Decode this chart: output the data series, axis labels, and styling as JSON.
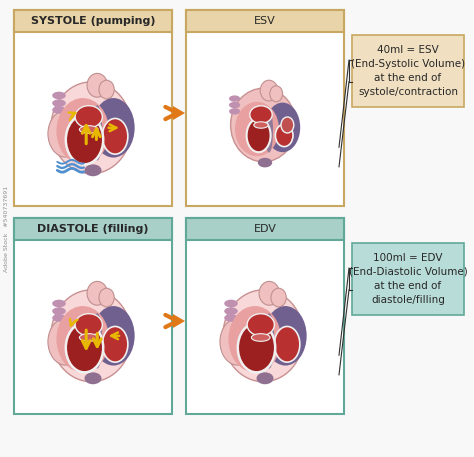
{
  "bg_color": "#f8f8f8",
  "top_header_color": "#e8d4a8",
  "bottom_header_color": "#a8cfc8",
  "top_border_color": "#c8a860",
  "bottom_border_color": "#60a898",
  "esv_box_color": "#f0dfc0",
  "edv_box_color": "#b8dcd8",
  "esv_box_border": "#c8a860",
  "edv_box_border": "#60a898",
  "arrow_color": "#e07818",
  "panel_labels": [
    "SYSTOLE (pumping)",
    "ESV",
    "DIASTOLE (filling)",
    "EDV"
  ],
  "esv_text": "40ml = ESV\n(End-Systolic Volume)\nat the end of\nsystole/contraction",
  "edv_text": "100ml = EDV\n(End-Diastolic Volume)\nat the end of\ndiastole/filling",
  "pink_outer": "#f0c0c0",
  "pink_mid": "#e8a0a0",
  "pink_light": "#f8d8d8",
  "purple_dark": "#706090",
  "purple_mid": "#907898",
  "purple_light": "#a888b0",
  "red_dark": "#9c2020",
  "red_mid": "#b83030",
  "red_light": "#c85050",
  "white_sep": "#f0f0f0",
  "yellow_col": "#e8b800",
  "blue_col": "#5090d0",
  "line_color": "#303030",
  "text_dark": "#282828",
  "label_fs": 8,
  "annot_fs": 7.5
}
